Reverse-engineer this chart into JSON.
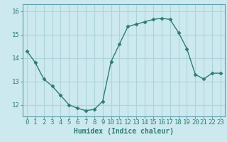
{
  "x": [
    0,
    1,
    2,
    3,
    4,
    5,
    6,
    7,
    8,
    9,
    10,
    11,
    12,
    13,
    14,
    15,
    16,
    17,
    18,
    19,
    20,
    21,
    22,
    23
  ],
  "y": [
    14.3,
    13.8,
    13.1,
    12.8,
    12.4,
    12.0,
    11.85,
    11.75,
    11.8,
    12.15,
    13.85,
    14.6,
    15.35,
    15.45,
    15.55,
    15.65,
    15.7,
    15.65,
    15.1,
    14.4,
    13.3,
    13.1,
    13.35,
    13.35
  ],
  "line_color": "#2e7d6e",
  "marker": "D",
  "marker_size": 2.5,
  "bg_color": "#cce9ef",
  "grid_color": "#aed4db",
  "xlabel": "Humidex (Indice chaleur)",
  "ylim": [
    11.5,
    16.3
  ],
  "yticks": [
    12,
    13,
    14,
    15,
    16
  ],
  "xticks": [
    0,
    1,
    2,
    3,
    4,
    5,
    6,
    7,
    8,
    9,
    10,
    11,
    12,
    13,
    14,
    15,
    16,
    17,
    18,
    19,
    20,
    21,
    22,
    23
  ],
  "xtick_labels": [
    "0",
    "1",
    "2",
    "3",
    "4",
    "5",
    "6",
    "7",
    "8",
    "9",
    "10",
    "11",
    "12",
    "13",
    "14",
    "15",
    "16",
    "17",
    "18",
    "19",
    "20",
    "21",
    "22",
    "23"
  ],
  "xlabel_fontsize": 7,
  "tick_fontsize": 6.5,
  "line_width": 1.0
}
